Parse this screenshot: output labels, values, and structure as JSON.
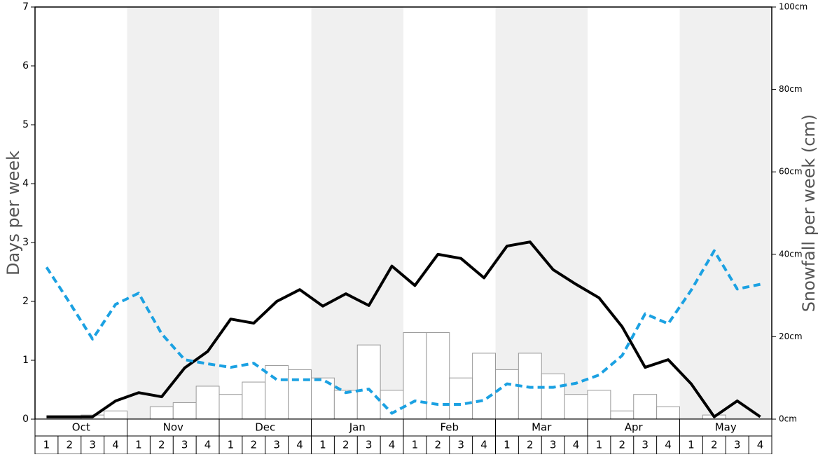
{
  "chart_data": {
    "type": "bar-line",
    "y_label": "Days per week",
    "y2_label": "Snowfall per week (cm)",
    "months": [
      "Oct",
      "Nov",
      "Dec",
      "Jan",
      "Feb",
      "Mar",
      "Apr",
      "May"
    ],
    "categories": [
      "1",
      "2",
      "3",
      "4",
      "1",
      "2",
      "3",
      "4",
      "1",
      "2",
      "3",
      "4",
      "1",
      "2",
      "3",
      "4",
      "1",
      "2",
      "3",
      "4",
      "1",
      "2",
      "3",
      "4",
      "1",
      "2",
      "3",
      "4",
      "1",
      "2",
      "3",
      "4"
    ],
    "ylim": [
      0,
      7
    ],
    "yticks": [
      0,
      1,
      2,
      3,
      4,
      5,
      6,
      7
    ],
    "y2lim": [
      0,
      100
    ],
    "y2ticks": [
      {
        "value": 0,
        "label": "0cm"
      },
      {
        "value": 20,
        "label": "20cm"
      },
      {
        "value": 40,
        "label": "40cm"
      },
      {
        "value": 60,
        "label": "60cm"
      },
      {
        "value": 80,
        "label": "80cm"
      },
      {
        "value": 100,
        "label": "100cm"
      }
    ],
    "series": [
      {
        "type": "bar",
        "axis": "y2",
        "color": "#ffffff",
        "values": [
          0,
          0,
          1,
          2,
          0,
          3,
          4,
          8,
          6,
          9,
          13,
          12,
          10,
          7,
          18,
          7,
          21,
          21,
          10,
          16,
          12,
          16,
          11,
          6,
          7,
          2,
          6,
          3,
          0,
          1,
          0,
          0
        ]
      },
      {
        "type": "line",
        "color": "#000000",
        "values": [
          0.04,
          0.04,
          0.04,
          0.31,
          0.45,
          0.38,
          0.87,
          1.15,
          1.7,
          1.63,
          2.0,
          2.2,
          1.92,
          2.13,
          1.93,
          2.6,
          2.27,
          2.8,
          2.73,
          2.4,
          2.94,
          3.01,
          2.54,
          2.29,
          2.06,
          1.57,
          0.88,
          1.01,
          0.6,
          0.04,
          0.31,
          0.04
        ]
      },
      {
        "type": "dashed",
        "color": "#1ba1e2",
        "values": [
          2.58,
          1.98,
          1.36,
          1.95,
          2.14,
          1.45,
          1.01,
          0.94,
          0.88,
          0.95,
          0.67,
          0.67,
          0.67,
          0.45,
          0.51,
          0.1,
          0.31,
          0.25,
          0.25,
          0.32,
          0.6,
          0.54,
          0.54,
          0.61,
          0.75,
          1.08,
          1.79,
          1.62,
          2.19,
          2.86,
          2.21,
          2.29
        ]
      }
    ]
  }
}
